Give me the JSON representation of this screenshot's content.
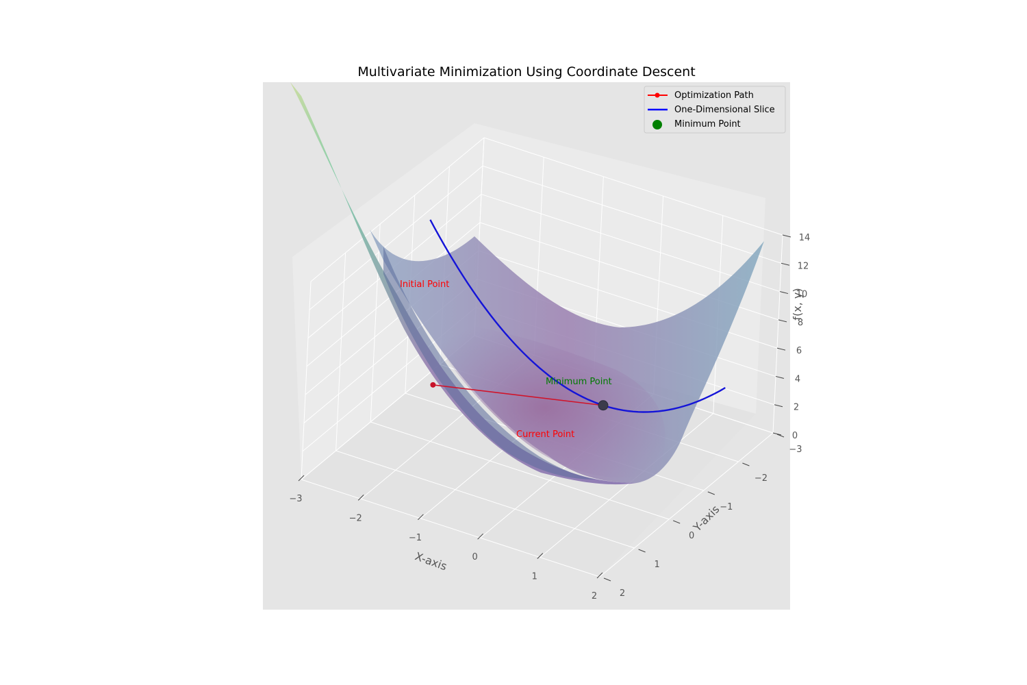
{
  "chart_data": {
    "type": "surface3d",
    "title": "Multivariate Minimization Using Coordinate Descent",
    "xlabel": "X-axis",
    "ylabel": "Y-axis",
    "zlabel": "f(x, y)",
    "xlim": [
      -3,
      2
    ],
    "ylim": [
      -3,
      2
    ],
    "zlim": [
      0,
      14
    ],
    "x_ticks": [
      "−3",
      "−2",
      "−1",
      "0",
      "1",
      "2"
    ],
    "y_ticks": [
      "−3",
      "−2",
      "−1",
      "0",
      "1",
      "2"
    ],
    "z_ticks": [
      "0",
      "2",
      "4",
      "6",
      "8",
      "10",
      "12",
      "14"
    ],
    "grid": true,
    "surface": {
      "function": "x^2 + y^2",
      "x_range": [
        -3,
        2
      ],
      "y_range": [
        -3,
        2
      ],
      "colormap": "viridis",
      "alpha": 0.5
    },
    "series": [
      {
        "name": "Optimization Path",
        "type": "line-with-markers",
        "color": "#ff0000",
        "points": [
          {
            "x": -2.0,
            "y": 0.0,
            "z": 4.0
          },
          {
            "x": 0.0,
            "y": -1.5,
            "z": 2.25
          }
        ]
      },
      {
        "name": "One-Dimensional Slice",
        "type": "line",
        "color": "#0000ff",
        "y_fixed": -1.5,
        "x_range": [
          -3,
          2
        ]
      },
      {
        "name": "Minimum Point",
        "type": "scatter",
        "color": "#008000",
        "points": [
          {
            "x": 0.0,
            "y": -1.5,
            "z": 2.25
          }
        ]
      }
    ],
    "annotations": [
      {
        "text": "Initial Point",
        "color": "#ff0000"
      },
      {
        "text": "Current Point",
        "color": "#ff0000"
      },
      {
        "text": "Minimum Point",
        "color": "#008000"
      }
    ],
    "legend": {
      "placement": "top-right",
      "entries": [
        "Optimization Path",
        "One-Dimensional Slice",
        "Minimum Point"
      ]
    },
    "colors": {
      "pane": "#e5e5e5",
      "grid": "#ffffff",
      "tick_text": "#555555"
    }
  }
}
